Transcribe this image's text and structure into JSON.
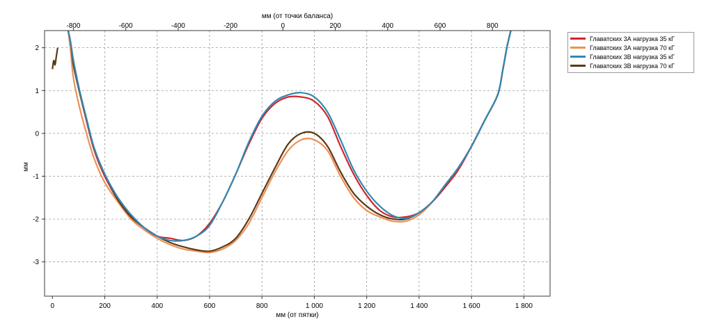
{
  "chart_data": {
    "type": "line",
    "title": "",
    "xlabel": "мм (от пятки)",
    "x2label": "мм (от точки баланса)",
    "ylabel": "мм",
    "xlim": [
      -30,
      1900
    ],
    "ylim": [
      -3.8,
      2.4
    ],
    "x2_offset": 880,
    "grid": true,
    "legend_position": "outside-right",
    "x_ticks": [
      0,
      200,
      400,
      600,
      800,
      1000,
      1200,
      1400,
      1600,
      1800
    ],
    "x_tick_labels": [
      "0",
      "200",
      "400",
      "600",
      "800",
      "1 000",
      "1 200",
      "1 400",
      "1 600",
      "1 800"
    ],
    "x2_ticks": [
      -800,
      -600,
      -400,
      -200,
      0,
      200,
      400,
      600,
      800
    ],
    "x2_tick_labels": [
      "-800",
      "-600",
      "-400",
      "-200",
      "0",
      "200",
      "400",
      "600",
      "800"
    ],
    "y_ticks": [
      -3,
      -2,
      -1,
      0,
      1,
      2
    ],
    "y_tick_labels": [
      "-3",
      "-2",
      "-1",
      "0",
      "1",
      "2"
    ],
    "series": [
      {
        "name": "Главатских 3А нагрузка 35 кГ",
        "color": "#d0262a",
        "x": [
          60,
          70,
          80,
          100,
          130,
          160,
          200,
          250,
          300,
          350,
          400,
          450,
          500,
          550,
          600,
          650,
          700,
          750,
          800,
          850,
          900,
          950,
          1000,
          1050,
          1100,
          1150,
          1200,
          1250,
          1300,
          1350,
          1400,
          1450,
          1500,
          1550,
          1600,
          1650,
          1700,
          1720,
          1735,
          1750
        ],
        "y": [
          2.4,
          2.1,
          1.7,
          1.1,
          0.3,
          -0.4,
          -1.0,
          -1.5,
          -1.9,
          -2.2,
          -2.4,
          -2.45,
          -2.5,
          -2.4,
          -2.1,
          -1.6,
          -0.95,
          -0.25,
          0.35,
          0.7,
          0.85,
          0.85,
          0.75,
          0.4,
          -0.3,
          -0.95,
          -1.45,
          -1.8,
          -1.95,
          -1.95,
          -1.85,
          -1.6,
          -1.25,
          -0.85,
          -0.3,
          0.3,
          0.9,
          1.5,
          2.0,
          2.4
        ]
      },
      {
        "name": "Главатских 3А нагрузка 70 кГ",
        "color": "#ef8f58",
        "x": [
          60,
          70,
          80,
          100,
          130,
          160,
          200,
          250,
          300,
          350,
          400,
          450,
          500,
          550,
          600,
          650,
          700,
          750,
          800,
          850,
          900,
          950,
          1000,
          1050,
          1100,
          1150,
          1200,
          1250,
          1300,
          1350,
          1400,
          1450,
          1500,
          1550,
          1600,
          1650,
          1700,
          1720,
          1735,
          1750
        ],
        "y": [
          2.4,
          1.9,
          1.3,
          0.7,
          0.0,
          -0.6,
          -1.15,
          -1.6,
          -2.0,
          -2.25,
          -2.45,
          -2.6,
          -2.7,
          -2.75,
          -2.78,
          -2.7,
          -2.5,
          -2.1,
          -1.5,
          -0.9,
          -0.4,
          -0.15,
          -0.15,
          -0.4,
          -1.0,
          -1.5,
          -1.8,
          -1.95,
          -2.05,
          -2.05,
          -1.9,
          -1.6,
          -1.2,
          -0.8,
          -0.3,
          0.3,
          0.9,
          1.5,
          2.0,
          2.4
        ]
      },
      {
        "name": "Главатских 3В нагрузка 35 кГ",
        "color": "#2f89b3",
        "x": [
          60,
          70,
          80,
          100,
          130,
          160,
          200,
          250,
          300,
          350,
          400,
          450,
          500,
          550,
          600,
          650,
          700,
          750,
          800,
          850,
          900,
          950,
          1000,
          1050,
          1100,
          1150,
          1200,
          1250,
          1300,
          1350,
          1400,
          1450,
          1500,
          1550,
          1600,
          1650,
          1700,
          1720,
          1735,
          1750
        ],
        "y": [
          2.4,
          2.1,
          1.7,
          1.1,
          0.35,
          -0.35,
          -0.95,
          -1.5,
          -1.9,
          -2.2,
          -2.4,
          -2.5,
          -2.5,
          -2.4,
          -2.15,
          -1.6,
          -0.95,
          -0.2,
          0.4,
          0.75,
          0.9,
          0.95,
          0.85,
          0.5,
          -0.15,
          -0.85,
          -1.35,
          -1.7,
          -1.92,
          -1.98,
          -1.85,
          -1.6,
          -1.2,
          -0.8,
          -0.3,
          0.3,
          0.9,
          1.5,
          2.0,
          2.4
        ]
      },
      {
        "name": "Главатских 3В нагрузка 70 кГ",
        "color": "#5a3a16",
        "x": [
          60,
          70,
          80,
          100,
          130,
          160,
          200,
          250,
          300,
          350,
          400,
          450,
          500,
          550,
          600,
          650,
          700,
          750,
          800,
          850,
          900,
          950,
          1000,
          1050,
          1100,
          1150,
          1200,
          1250,
          1300,
          1350,
          1400,
          1450,
          1500,
          1550,
          1600,
          1650,
          1700,
          1720,
          1735,
          1750
        ],
        "y": [
          2.4,
          2.1,
          1.6,
          1.05,
          0.3,
          -0.4,
          -1.0,
          -1.55,
          -1.95,
          -2.2,
          -2.4,
          -2.55,
          -2.65,
          -2.72,
          -2.75,
          -2.65,
          -2.45,
          -2.0,
          -1.4,
          -0.8,
          -0.25,
          0.0,
          0.0,
          -0.3,
          -0.9,
          -1.4,
          -1.7,
          -1.9,
          -2.0,
          -2.0,
          -1.85,
          -1.6,
          -1.2,
          -0.8,
          -0.3,
          0.3,
          0.9,
          1.5,
          2.0,
          2.4
        ]
      },
      {
        "name": "",
        "color": "#5a3a16",
        "x": [
          0,
          5,
          10,
          15,
          20
        ],
        "y": [
          1.5,
          1.7,
          1.6,
          1.8,
          2.0
        ]
      }
    ]
  }
}
